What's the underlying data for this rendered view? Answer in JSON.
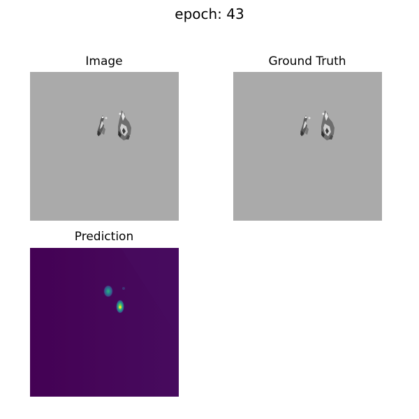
{
  "figure": {
    "title": "epoch: 43"
  },
  "panels": [
    {
      "title": "Image",
      "colormap": "gray",
      "background": "#aaaaaa"
    },
    {
      "title": "Ground Truth",
      "colormap": "gray",
      "background": "#aaaaaa"
    },
    {
      "title": "Prediction",
      "colormap": "viridis",
      "background": "#46085a"
    }
  ]
}
